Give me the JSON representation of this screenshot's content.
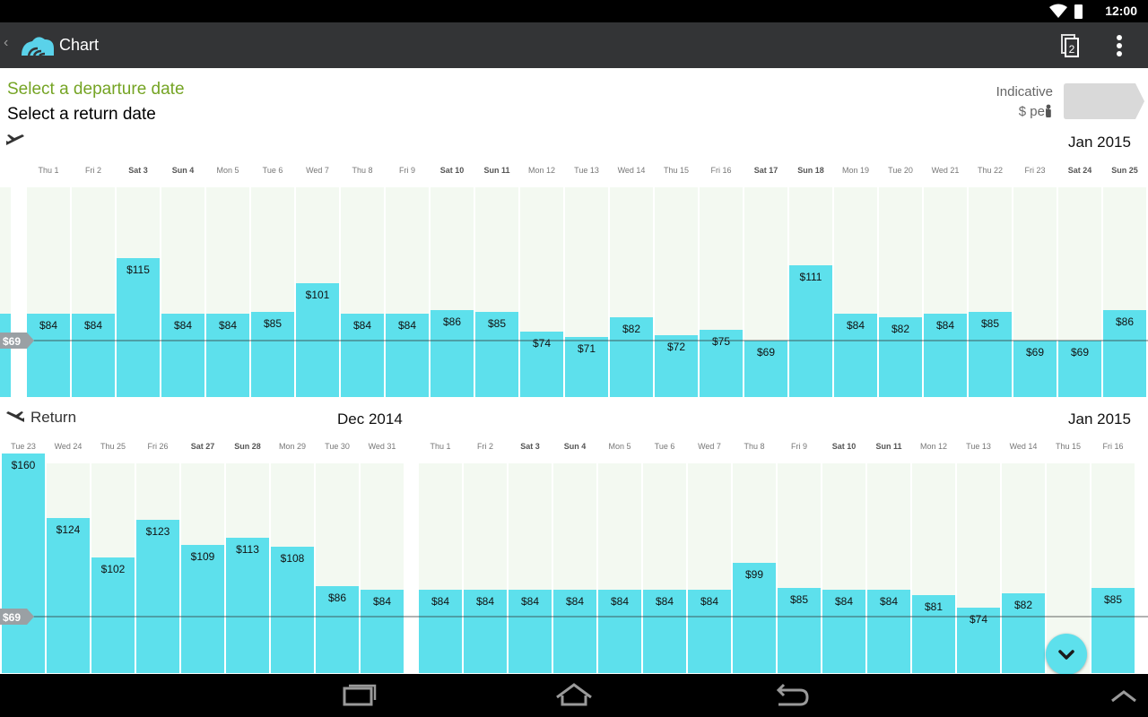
{
  "status_bar": {
    "time": "12:00"
  },
  "action_bar": {
    "title": "Chart"
  },
  "header": {
    "select_departure": "Select a departure date",
    "select_return": "Select a return date",
    "indicative": "Indicative",
    "per_person": "$ per"
  },
  "outbound": {
    "month_labels": [
      "Jan 2015"
    ],
    "baseline_label": "$69",
    "chart_data": {
      "type": "bar",
      "title": "",
      "xlabel": "",
      "ylabel": "",
      "month": "Jan 2015",
      "categories": [
        "Thu 1",
        "Fri 2",
        "Sat 3",
        "Sun 4",
        "Mon 5",
        "Tue 6",
        "Wed 7",
        "Thu 8",
        "Fri 9",
        "Sat 10",
        "Sun 11",
        "Mon 12",
        "Tue 13",
        "Wed 14",
        "Thu 15",
        "Fri 16",
        "Sat 17",
        "Sun 18",
        "Mon 19",
        "Tue 20",
        "Wed 21",
        "Thu 22",
        "Fri 23",
        "Sat 24",
        "Sun 25"
      ],
      "weekend": [
        false,
        false,
        true,
        true,
        false,
        false,
        false,
        false,
        false,
        true,
        true,
        false,
        false,
        false,
        false,
        false,
        true,
        true,
        false,
        false,
        false,
        false,
        false,
        true,
        true
      ],
      "values": [
        84,
        84,
        115,
        84,
        84,
        85,
        101,
        84,
        84,
        86,
        85,
        74,
        71,
        82,
        72,
        75,
        69,
        111,
        84,
        82,
        84,
        85,
        69,
        69,
        86
      ],
      "labels": [
        "$84",
        "$84",
        "$115",
        "$84",
        "$84",
        "$85",
        "$101",
        "$84",
        "$84",
        "$86",
        "$85",
        "$74",
        "$71",
        "$82",
        "$72",
        "$75",
        "$69",
        "$111",
        "$84",
        "$82",
        "$84",
        "$85",
        "$69",
        "$69",
        "$86"
      ],
      "reference_line": 69
    }
  },
  "return": {
    "label": "Return",
    "month_labels": [
      "Dec 2014",
      "Jan 2015"
    ],
    "baseline_label": "$69",
    "chart_data": {
      "type": "bar",
      "title": "",
      "xlabel": "",
      "ylabel": "",
      "categories": [
        "Tue 23",
        "Wed 24",
        "Thu 25",
        "Fri 26",
        "Sat 27",
        "Sun 28",
        "Mon 29",
        "Tue 30",
        "Wed 31",
        "Thu 1",
        "Fri 2",
        "Sat 3",
        "Sun 4",
        "Mon 5",
        "Tue 6",
        "Wed 7",
        "Thu 8",
        "Fri 9",
        "Sat 10",
        "Sun 11",
        "Mon 12",
        "Tue 13",
        "Wed 14",
        "Thu 15",
        "Fri 16"
      ],
      "weekend": [
        false,
        false,
        false,
        false,
        true,
        true,
        false,
        false,
        false,
        false,
        false,
        true,
        true,
        false,
        false,
        false,
        false,
        false,
        true,
        true,
        false,
        false,
        false,
        false,
        false
      ],
      "values": [
        160,
        124,
        102,
        123,
        109,
        113,
        108,
        86,
        84,
        84,
        84,
        84,
        84,
        84,
        84,
        84,
        99,
        85,
        84,
        84,
        81,
        74,
        82,
        null,
        85
      ],
      "labels": [
        "$160",
        "$124",
        "$102",
        "$123",
        "$109",
        "$113",
        "$108",
        "$86",
        "$84",
        "$84",
        "$84",
        "$84",
        "$84",
        "$84",
        "$84",
        "$84",
        "$99",
        "$85",
        "$84",
        "$84",
        "$81",
        "$74",
        "$82",
        "",
        "$85"
      ],
      "reference_line": 69
    }
  },
  "colors": {
    "bar": "#5de0ec",
    "column_bg": "#f3f9f1",
    "action_bar": "#333436",
    "accent_green": "#75a424",
    "baseline_tag": "#9aa0a4"
  },
  "icons": [
    "wifi-icon",
    "battery-icon",
    "skyscanner-logo-icon",
    "copies-icon",
    "overflow-menu-icon",
    "plane-depart-icon",
    "plane-return-icon",
    "person-icon",
    "chevron-down-icon",
    "recents-nav-icon",
    "home-nav-icon",
    "back-nav-icon",
    "chevron-up-icon"
  ]
}
